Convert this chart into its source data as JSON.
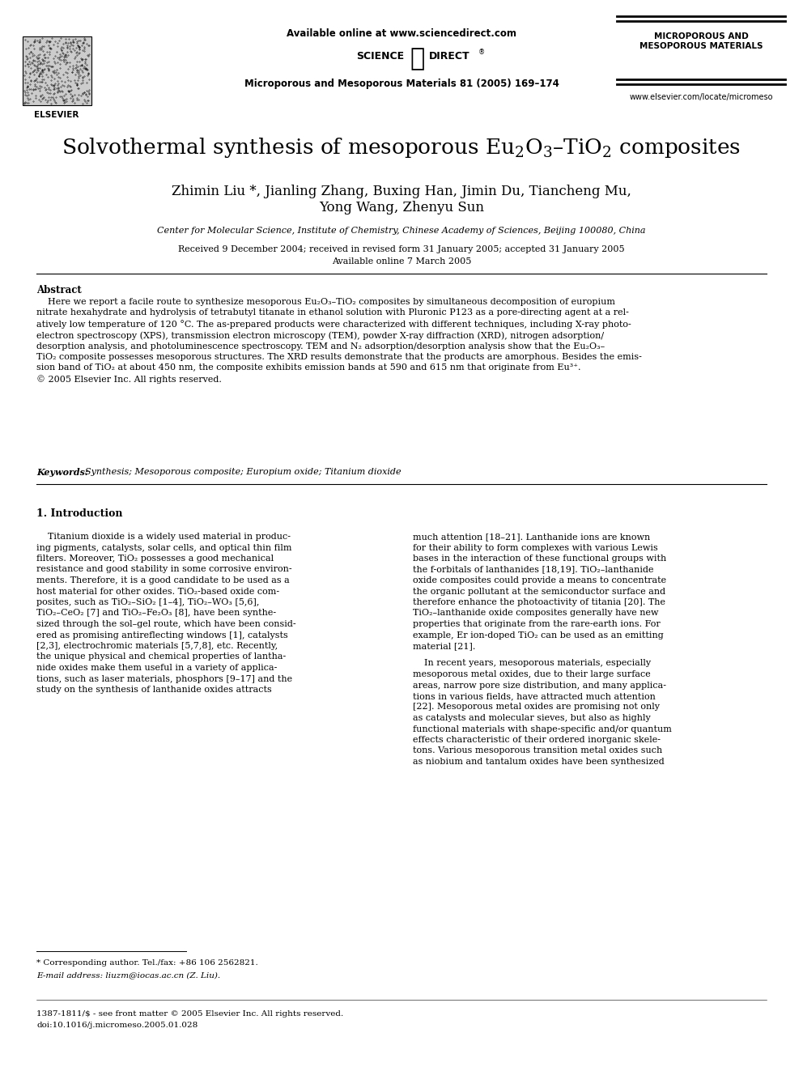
{
  "bg_color": "#ffffff",
  "header_available_online": "Available online at www.sciencedirect.com",
  "header_journal_ref": "Microporous and Mesoporous Materials 81 (2005) 169–174",
  "header_journal_name": "MICROPOROUS AND\nMESOPOROUS MATERIALS",
  "header_url": "www.elsevier.com/locate/micromeso",
  "title_full": "Solvothermal synthesis of mesoporous Eu$_2$O$_3$–TiO$_2$ composites",
  "authors_line1": "Zhimin Liu *, Jianling Zhang, Buxing Han, Jimin Du, Tiancheng Mu,",
  "authors_line2": "Yong Wang, Zhenyu Sun",
  "affiliation": "Center for Molecular Science, Institute of Chemistry, Chinese Academy of Sciences, Beijing 100080, China",
  "received": "Received 9 December 2004; received in revised form 31 January 2005; accepted 31 January 2005",
  "available": "Available online 7 March 2005",
  "abstract_title": "Abstract",
  "abstract_text": "    Here we report a facile route to synthesize mesoporous Eu₂O₃–TiO₂ composites by simultaneous decomposition of europium\nnitrate hexahydrate and hydrolysis of tetrabutyl titanate in ethanol solution with Pluronic P123 as a pore-directing agent at a rel-\natively low temperature of 120 °C. The as-prepared products were characterized with different techniques, including X-ray photo-\nelectron spectroscopy (XPS), transmission electron microscopy (TEM), powder X-ray diffraction (XRD), nitrogen adsorption/\ndesorption analysis, and photoluminescence spectroscopy. TEM and N₂ adsorption/desorption analysis show that the Eu₂O₃–\nTiO₂ composite possesses mesoporous structures. The XRD results demonstrate that the products are amorphous. Besides the emis-\nsion band of TiO₂ at about 450 nm, the composite exhibits emission bands at 590 and 615 nm that originate from Eu³⁺.\n© 2005 Elsevier Inc. All rights reserved.",
  "keywords_label": "Keywords:  ",
  "keywords_text": "Synthesis; Mesoporous composite; Europium oxide; Titanium dioxide",
  "section1_title": "1. Introduction",
  "col1_para1": "    Titanium dioxide is a widely used material in produc-\ning pigments, catalysts, solar cells, and optical thin film\nfilters. Moreover, TiO₂ possesses a good mechanical\nresistance and good stability in some corrosive environ-\nments. Therefore, it is a good candidate to be used as a\nhost material for other oxides. TiO₂-based oxide com-\nposites, such as TiO₂–SiO₂ [1–4], TiO₂–WO₃ [5,6],\nTiO₂–CeO₂ [7] and TiO₂–Fe₂O₃ [8], have been synthe-\nsized through the sol–gel route, which have been consid-\nered as promising antireflecting windows [1], catalysts\n[2,3], electrochromic materials [5,7,8], etc. Recently,\nthe unique physical and chemical properties of lantha-\nnide oxides make them useful in a variety of applica-\ntions, such as laser materials, phosphors [9–17] and the\nstudy on the synthesis of lanthanide oxides attracts",
  "col2_para1": "much attention [18–21]. Lanthanide ions are known\nfor their ability to form complexes with various Lewis\nbases in the interaction of these functional groups with\nthe f-orbitals of lanthanides [18,19]. TiO₂–lanthanide\noxide composites could provide a means to concentrate\nthe organic pollutant at the semiconductor surface and\ntherefore enhance the photoactivity of titania [20]. The\nTiO₂–lanthanide oxide composites generally have new\nproperties that originate from the rare-earth ions. For\nexample, Er ion-doped TiO₂ can be used as an emitting\nmaterial [21].",
  "col2_para2": "    In recent years, mesoporous materials, especially\nmesoporous metal oxides, due to their large surface\nareas, narrow pore size distribution, and many applica-\ntions in various fields, have attracted much attention\n[22]. Mesoporous metal oxides are promising not only\nas catalysts and molecular sieves, but also as highly\nfunctional materials with shape-specific and/or quantum\neffects characteristic of their ordered inorganic skele-\ntons. Various mesoporous transition metal oxides such\nas niobium and tantalum oxides have been synthesized",
  "footnote_star": "* Corresponding author. Tel./fax: +86 106 2562821.",
  "footnote_email": "E-mail address: liuzm@iocas.ac.cn (Z. Liu).",
  "footnote_issn": "1387-1811/$ - see front matter © 2005 Elsevier Inc. All rights reserved.",
  "footnote_doi": "doi:10.1016/j.micromeso.2005.01.028",
  "text_color": "#000000"
}
